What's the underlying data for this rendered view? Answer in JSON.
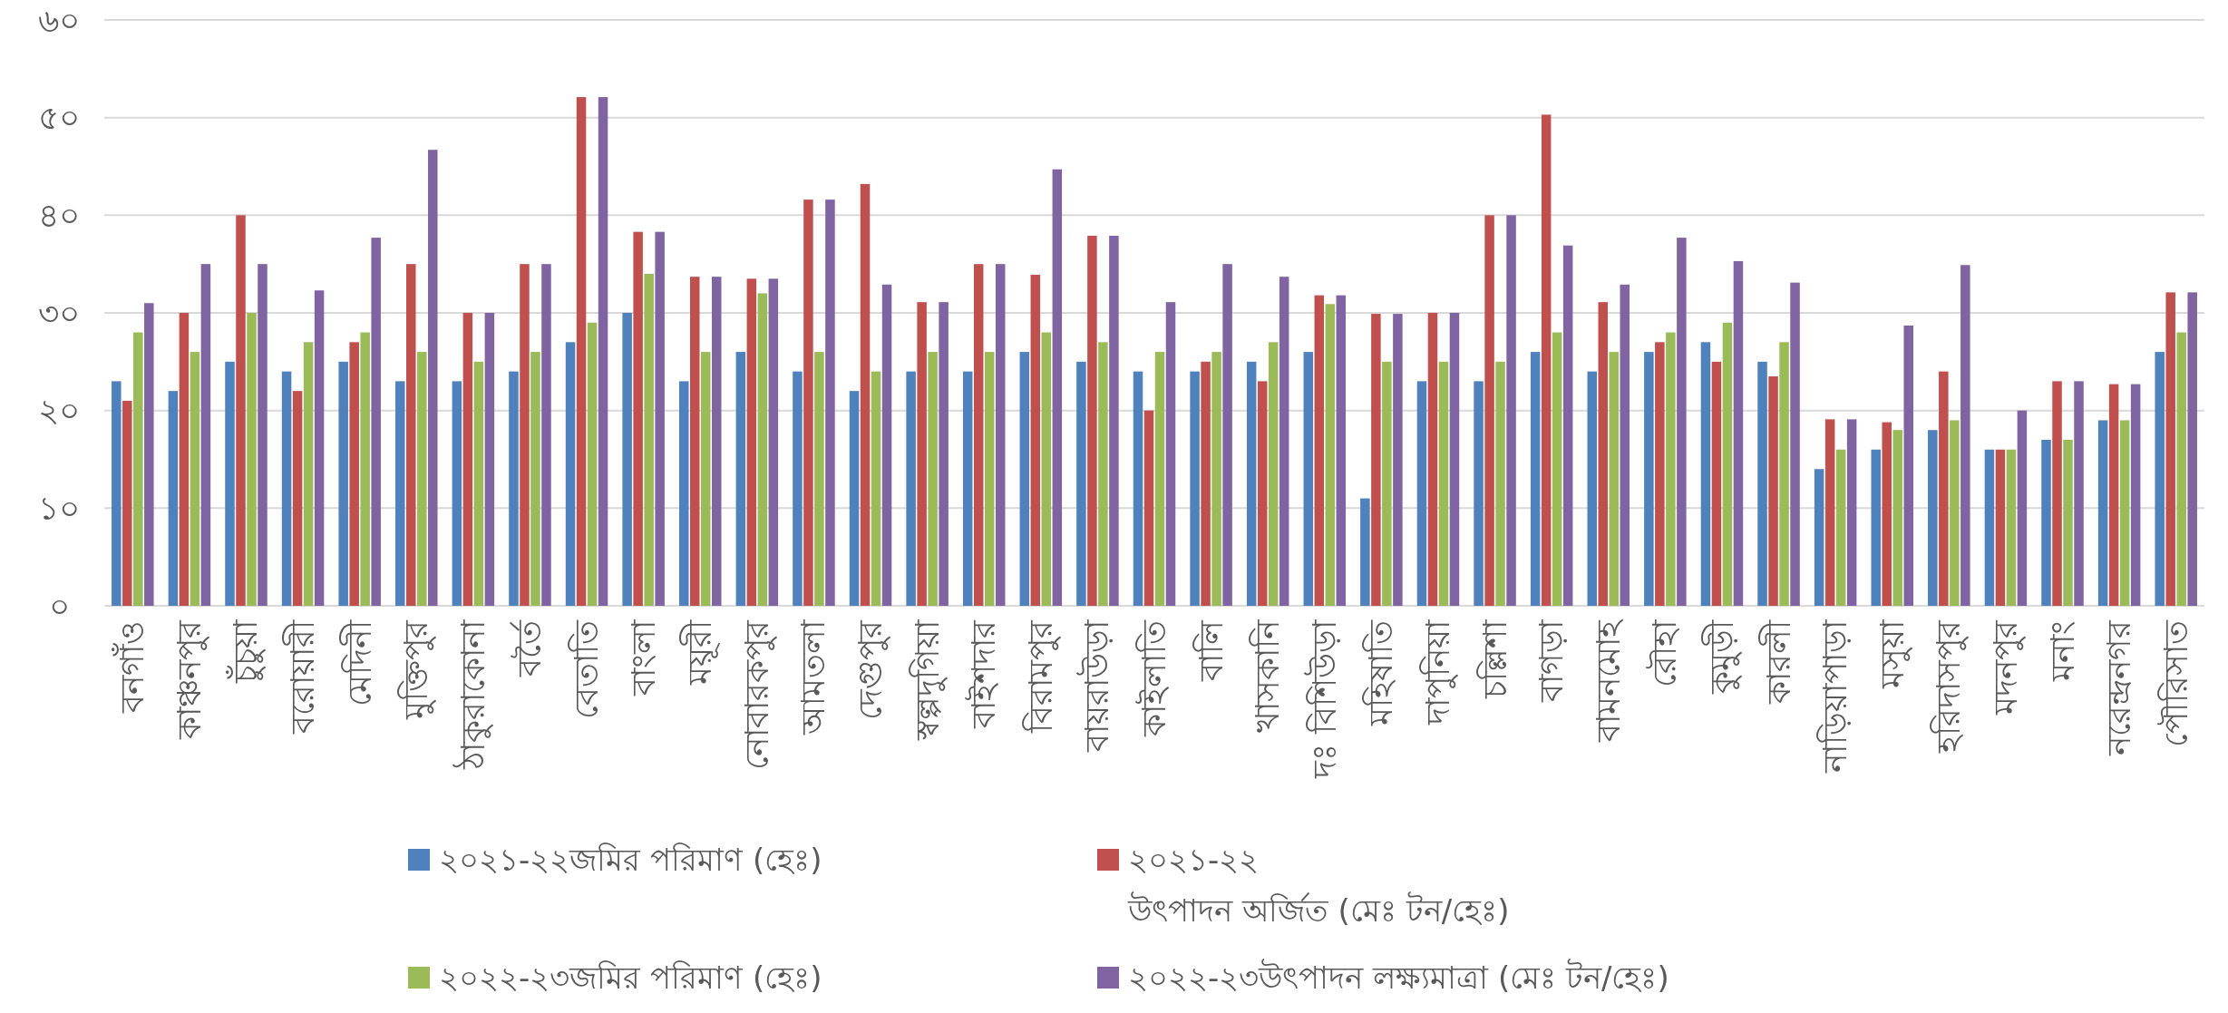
{
  "chart_data": {
    "type": "bar",
    "categories": [
      "বনগাঁও",
      "কাঞ্চনপুর",
      "চুঁচুয়া",
      "বরোয়ারী",
      "মেদিনী",
      "মুক্তিপুর",
      "ঠাকুরাকোনা",
      "বর্তৈ",
      "বেতাতি",
      "বাংলা",
      "ময়ূরী",
      "নোবারকপুর",
      "আমতলা",
      "দেগুপুর",
      "স্বল্পদুগিয়া",
      "বাইশদার",
      "বিরামপুর",
      "বায়রাউড়া",
      "কাইলাতি",
      "বালি",
      "খাসকানি",
      "দঃ বিশিউড়া",
      "মহিষাতি",
      "দাপুনিয়া",
      "চল্লিশা",
      "বাগড়া",
      "বামনমোহ",
      "রৌহা",
      "কুমুড়ী",
      "কারলী",
      "নাড়িয়াপাড়া",
      "মসুয়া",
      "হরিদাসপুর",
      "মদনপুর",
      "মনাং",
      "নরেন্দ্রনগর",
      "পৌরিসাত"
    ],
    "series": [
      {
        "name": "২০২১-২২জমির পরিমাণ (হেঃ)",
        "color": "#4f81bd",
        "values": [
          23,
          22,
          25,
          24,
          25,
          23,
          23,
          24,
          27,
          30,
          23,
          26,
          24,
          22,
          24,
          24,
          26,
          25,
          24,
          24,
          25,
          26,
          11,
          23,
          23,
          26,
          24,
          26,
          27,
          25,
          14,
          16,
          18,
          16,
          17,
          19,
          26
        ]
      },
      {
        "name": "২০২১-২২\nউৎপাদন  অর্জিত (মেঃ টন/হেঃ)",
        "color": "#c0504d",
        "values": [
          21,
          30,
          40,
          22,
          27,
          35,
          30,
          35,
          52.1,
          38.3,
          33.7,
          33.5,
          41.6,
          43.2,
          31.1,
          35,
          33.9,
          37.9,
          20,
          25,
          23,
          31.8,
          29.9,
          30,
          40,
          50.3,
          31.1,
          27,
          25,
          23.5,
          19.1,
          18.8,
          24,
          16,
          23,
          22.7,
          32.1
        ]
      },
      {
        "name": "২০২২-২৩জমির পরিমাণ (হেঃ)",
        "color": "#9bbb59",
        "values": [
          28,
          26,
          30,
          27,
          28,
          26,
          25,
          26,
          29,
          34,
          26,
          32,
          26,
          24,
          26,
          26,
          28,
          27,
          26,
          26,
          27,
          30.9,
          25,
          25,
          25,
          28,
          26,
          28,
          29,
          27,
          16,
          18,
          19,
          16,
          17,
          19,
          28
        ]
      },
      {
        "name": "২০২২-২৩উৎপাদন  লক্ষ্যমাত্রা (মেঃ টন/হেঃ)",
        "color": "#8064a2",
        "values": [
          31,
          35,
          35,
          32.3,
          37.7,
          46.7,
          30,
          35,
          52.1,
          38.3,
          33.7,
          33.5,
          41.6,
          32.9,
          31.1,
          35,
          44.7,
          37.9,
          31.1,
          35,
          33.7,
          31.8,
          29.9,
          30,
          40,
          36.9,
          32.9,
          37.7,
          35.3,
          33.1,
          19.1,
          28.7,
          34.9,
          20,
          23,
          22.7,
          32.1
        ]
      }
    ],
    "ylim": [
      0,
      60
    ],
    "yticks": [
      {
        "value": 0,
        "label": "০"
      },
      {
        "value": 10,
        "label": "১০"
      },
      {
        "value": 20,
        "label": "২০"
      },
      {
        "value": 30,
        "label": "৩০"
      },
      {
        "value": 40,
        "label": "৪০"
      },
      {
        "value": 50,
        "label": "৫০"
      },
      {
        "value": 60,
        "label": "৬০"
      }
    ],
    "grid": "y",
    "legend": "bottom"
  }
}
